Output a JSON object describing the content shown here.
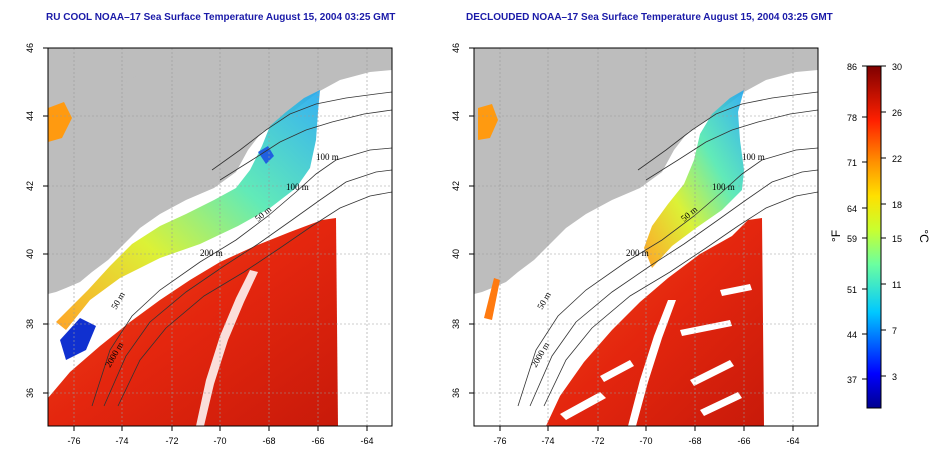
{
  "panels": [
    {
      "title": "RU COOL NOAA–17 Sea Surface Temperature August 15, 2004 03:25 GMT",
      "x_ticks": [
        "-76",
        "-74",
        "-72",
        "-70",
        "-68",
        "-66",
        "-64"
      ],
      "y_ticks": [
        "46",
        "44",
        "42",
        "40",
        "38",
        "36"
      ],
      "contour_labels": [
        "100 m",
        "100 m",
        "50 m",
        "200 m",
        "50 m",
        "2000 m"
      ]
    },
    {
      "title": "DECLOUDED NOAA–17 Sea Surface Temperature August 15, 2004 03:25 GMT",
      "x_ticks": [
        "-76",
        "-74",
        "-72",
        "-70",
        "-68",
        "-66",
        "-64"
      ],
      "y_ticks": [
        "46",
        "44",
        "42",
        "40",
        "38",
        "36"
      ],
      "contour_labels": [
        "100 m",
        "100 m",
        "50 m",
        "200 m",
        "50 m",
        "2000 m"
      ]
    }
  ],
  "colorbar": {
    "fahrenheit_ticks": [
      "86",
      "78",
      "71",
      "64",
      "59",
      "51",
      "44",
      "37"
    ],
    "celsius_ticks": [
      "30",
      "26",
      "22",
      "18",
      "15",
      "11",
      "7",
      "3"
    ],
    "left_unit": "°F",
    "right_unit": "°C"
  },
  "colors": {
    "title": "#1a1aa8",
    "land": "#bdbdbd",
    "warm": "#e8230f",
    "hot": "#c41a0c",
    "cold": "#1030d0"
  }
}
